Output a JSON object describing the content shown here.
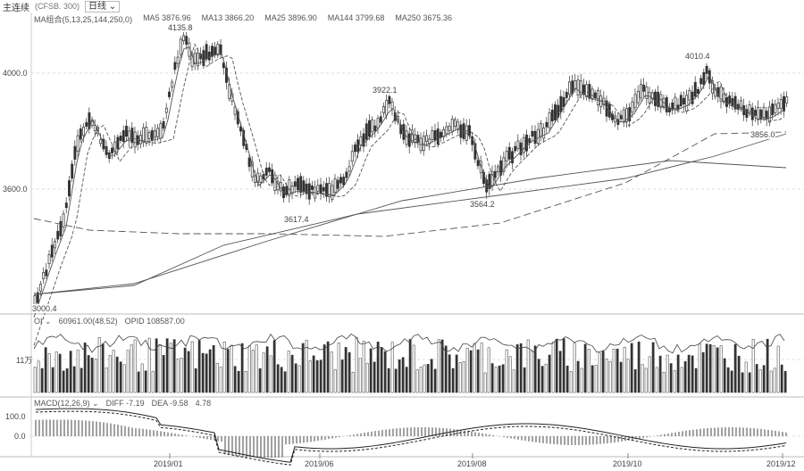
{
  "toolbar": {
    "contract": "主连续",
    "symbol": "(CFSB. 300)",
    "period": "日线"
  },
  "ma_legend": {
    "name": "MA组合(5,13,25,144,250,0)",
    "items": [
      {
        "label": "MA5",
        "value": "3876.96"
      },
      {
        "label": "MA13",
        "value": "3866.20"
      },
      {
        "label": "MA25",
        "value": "3896.90"
      },
      {
        "label": "MA144",
        "value": "3799.68"
      },
      {
        "label": "MA250",
        "value": "3675.36"
      }
    ]
  },
  "price_axis": [
    "4000.0",
    "3600.0"
  ],
  "price_annotations": [
    "4135.8",
    "3922.1",
    "4010.4",
    "3617.4",
    "3564.2",
    "3856.0",
    "3000.4"
  ],
  "oi_legend": {
    "name": "OI",
    "value": "60961.00(48.52)",
    "opid_label": "OPID",
    "opid_value": "108587.00"
  },
  "oi_axis": "11万",
  "macd_legend": {
    "name": "MACD(12,26,9)",
    "diff": "DIFF -7.19",
    "dea": "DEA -9.58",
    "macd": "4.78"
  },
  "macd_axis": [
    "100.0",
    "0.0"
  ],
  "date_axis": [
    "2019/01",
    "2019/06",
    "2019/08",
    "2019/10",
    "2019/12"
  ],
  "colors": {
    "candle": "#333333",
    "ma_slow": "#555555",
    "grid": "#dddddd"
  }
}
